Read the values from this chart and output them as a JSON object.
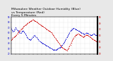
{
  "title": "Milwaukee Weather Outdoor Humidity (Blue)\nvs Temperature (Red)\nEvery 5 Minutes",
  "title_fontsize": 3.2,
  "background_color": "#e8e8e8",
  "plot_bg_color": "#ffffff",
  "blue_color": "#0000cc",
  "red_color": "#cc0000",
  "n_points": 100,
  "humidity_values": [
    68,
    65,
    62,
    64,
    67,
    70,
    68,
    65,
    63,
    61,
    59,
    60,
    62,
    64,
    63,
    61,
    58,
    55,
    52,
    50,
    48,
    47,
    46,
    48,
    50,
    52,
    54,
    55,
    53,
    51,
    49,
    47,
    45,
    43,
    42,
    41,
    40,
    39,
    38,
    37,
    36,
    35,
    34,
    33,
    32,
    31,
    30,
    29,
    28,
    28,
    27,
    27,
    28,
    29,
    30,
    31,
    32,
    33,
    35,
    37,
    39,
    42,
    45,
    48,
    51,
    54,
    57,
    60,
    63,
    65,
    67,
    68,
    69,
    68,
    67,
    66,
    65,
    64,
    63,
    62,
    61,
    60,
    59,
    58,
    57,
    58,
    59,
    60,
    59,
    58,
    57,
    56,
    55,
    56,
    57,
    58,
    57,
    56,
    55,
    54
  ],
  "temperature_values": [
    52,
    54,
    56,
    57,
    58,
    59,
    61,
    63,
    65,
    67,
    68,
    70,
    71,
    72,
    74,
    75,
    77,
    78,
    79,
    80,
    81,
    82,
    83,
    84,
    85,
    86,
    85,
    84,
    83,
    82,
    81,
    80,
    79,
    78,
    77,
    76,
    75,
    74,
    73,
    72,
    71,
    70,
    69,
    68,
    67,
    66,
    65,
    63,
    61,
    59,
    57,
    55,
    53,
    51,
    49,
    47,
    45,
    43,
    41,
    40,
    39,
    38,
    37,
    36,
    35,
    37,
    39,
    42,
    45,
    48,
    51,
    54,
    56,
    58,
    60,
    61,
    62,
    63,
    62,
    61,
    60,
    59,
    58,
    57,
    58,
    59,
    60,
    61,
    60,
    59,
    58,
    57,
    56,
    55,
    54,
    53,
    52,
    51,
    50,
    51
  ],
  "ylim_left": [
    20,
    90
  ],
  "ylim_right": [
    30,
    90
  ],
  "yticks_left": [
    20,
    30,
    40,
    50,
    60,
    70,
    80,
    90
  ],
  "yticks_right": [
    30,
    40,
    50,
    60,
    70,
    80,
    90
  ],
  "grid_color": "#bbbbbb",
  "tick_fontsize": 2.0,
  "linewidth": 0.55,
  "linestyle": ":",
  "marker": "o",
  "markersize": 0.8,
  "n_xticks": 18
}
